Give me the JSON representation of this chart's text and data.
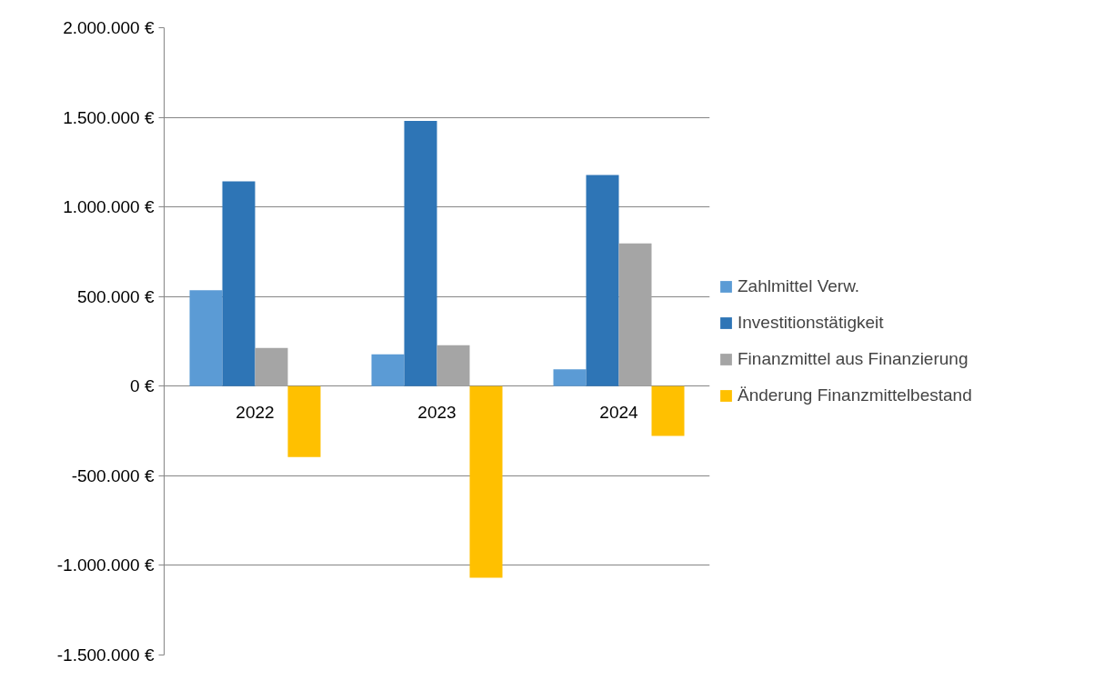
{
  "chart_data": {
    "type": "bar",
    "categories": [
      "2022",
      "2023",
      "2024"
    ],
    "series": [
      {
        "name": "Zahlmittel Verw.",
        "color": "#5b9bd5",
        "values": [
          535000,
          178000,
          94000
        ]
      },
      {
        "name": "Investitionstätigkeit",
        "color": "#2e75b6",
        "values": [
          1143000,
          1480000,
          1178000
        ]
      },
      {
        "name": "Finanzmittel aus Finanzierung",
        "color": "#a5a5a5",
        "values": [
          213000,
          228000,
          797000
        ]
      },
      {
        "name": "Änderung Finanzmittelbestand",
        "color": "#ffc000",
        "values": [
          -396000,
          -1069000,
          -277000
        ]
      }
    ],
    "ylim": [
      -1500000,
      2000000
    ],
    "yticks": [
      {
        "value": -1500000,
        "label": "-1.500.000 €"
      },
      {
        "value": -1000000,
        "label": "-1.000.000 €"
      },
      {
        "value": -500000,
        "label": "-500.000 €"
      },
      {
        "value": 0,
        "label": "0 €"
      },
      {
        "value": 500000,
        "label": "500.000 €"
      },
      {
        "value": 1000000,
        "label": "1.000.000 €"
      },
      {
        "value": 1500000,
        "label": "1.500.000 €"
      },
      {
        "value": 2000000,
        "label": "2.000.000 €"
      }
    ],
    "grid": "y",
    "legend": "right"
  }
}
